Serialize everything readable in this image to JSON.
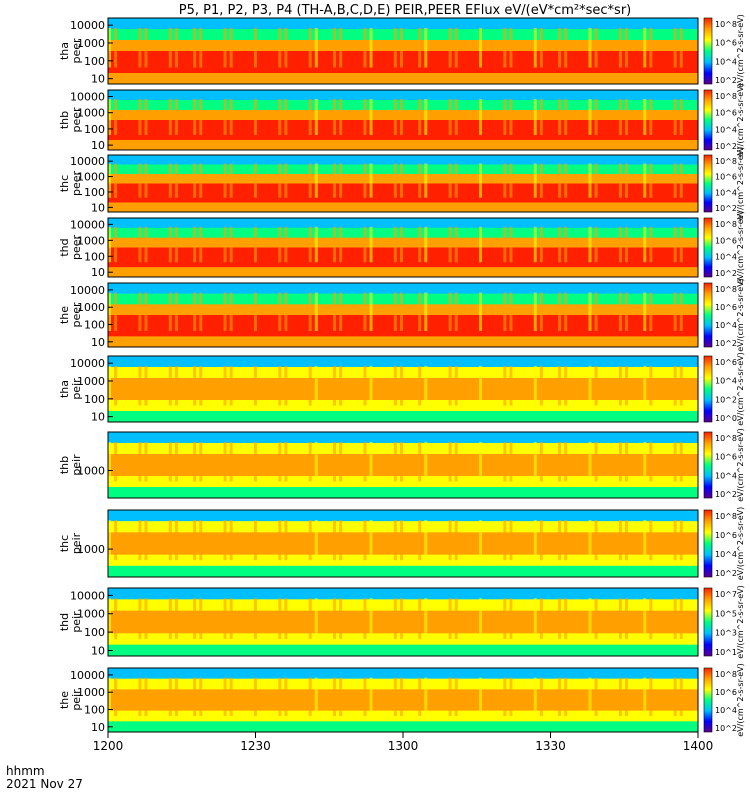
{
  "chart_data": {
    "type": "heatmap",
    "title": "P5, P1, P2, P3, P4 (TH-A,B,C,D,E) PEIR,PEER EFlux eV/(eV*cm²*sec*sr)",
    "time_axis": {
      "label_line1": "hhmm",
      "label_line2": "2021 Nov 27",
      "ticks": [
        "1200",
        "1230",
        "1300",
        "1330",
        "1400"
      ]
    },
    "panels": [
      {
        "name": "tha peer",
        "ylabel_top": "tha",
        "ylabel_bottom": "peer",
        "yticks": [
          "10000",
          "1000",
          "100",
          "10"
        ],
        "log_yrange": [
          0.7,
          4.4
        ],
        "cbar_ticks": [
          "10^8",
          "10^6",
          "10^4",
          "10^2"
        ],
        "cbar_label": "eV/(cm^2-s-sr-eV)"
      },
      {
        "name": "thb peer",
        "ylabel_top": "thb",
        "ylabel_bottom": "peer",
        "yticks": [
          "10000",
          "1000",
          "100",
          "10"
        ],
        "log_yrange": [
          0.7,
          4.4
        ],
        "cbar_ticks": [
          "10^8",
          "10^6",
          "10^4",
          "10^2"
        ],
        "cbar_label": "eV/(cm^2-s-sr-eV)"
      },
      {
        "name": "thc peer",
        "ylabel_top": "thc",
        "ylabel_bottom": "peer",
        "yticks": [
          "10000",
          "1000",
          "100",
          "10"
        ],
        "log_yrange": [
          0.7,
          4.4
        ],
        "cbar_ticks": [
          "10^8",
          "10^6",
          "10^4",
          "10^2"
        ],
        "cbar_label": "eV/(cm^2-s-sr-eV)"
      },
      {
        "name": "thd peer",
        "ylabel_top": "thd",
        "ylabel_bottom": "peer",
        "yticks": [
          "10000",
          "1000",
          "100",
          "10"
        ],
        "log_yrange": [
          0.7,
          4.4
        ],
        "cbar_ticks": [
          "10^8",
          "10^6",
          "10^4",
          "10^2"
        ],
        "cbar_label": "eV/(cm^2-s-sr-eV)"
      },
      {
        "name": "the peer",
        "ylabel_top": "the",
        "ylabel_bottom": "peer",
        "yticks": [
          "10000",
          "1000",
          "100",
          "10"
        ],
        "log_yrange": [
          0.7,
          4.4
        ],
        "cbar_ticks": [
          "10^8",
          "10^6",
          "10^4",
          "10^2"
        ],
        "cbar_label": "eV/(cm^2-s-sr-eV)"
      },
      {
        "name": "tha peir",
        "ylabel_top": "tha",
        "ylabel_bottom": "peir",
        "yticks": [
          "10000",
          "1000",
          "100",
          "10"
        ],
        "log_yrange": [
          0.7,
          4.4
        ],
        "cbar_ticks": [
          "10^6",
          "10^4",
          "10^2",
          "10^0"
        ],
        "cbar_label": "eV/(cm^2-s-sr-eV)"
      },
      {
        "name": "thb peir",
        "ylabel_top": "thb",
        "ylabel_bottom": "peir",
        "yticks": [
          "1000"
        ],
        "log_yrange": [
          2.0,
          4.4
        ],
        "cbar_ticks": [
          "10^8",
          "10^6",
          "10^4",
          "10^2"
        ],
        "cbar_label": "eV/(cm^2-s-sr-eV)"
      },
      {
        "name": "thc peir",
        "ylabel_top": "thc",
        "ylabel_bottom": "peir",
        "yticks": [
          "1000"
        ],
        "log_yrange": [
          2.0,
          4.4
        ],
        "cbar_ticks": [
          "10^8",
          "10^6",
          "10^4",
          "10^2"
        ],
        "cbar_label": "eV/(cm^2-s-sr-eV)"
      },
      {
        "name": "thd peir",
        "ylabel_top": "thd",
        "ylabel_bottom": "peir",
        "yticks": [
          "10000",
          "1000",
          "100",
          "10"
        ],
        "log_yrange": [
          0.7,
          4.4
        ],
        "cbar_ticks": [
          "10^7",
          "10^5",
          "10^3",
          "10^1"
        ],
        "cbar_label": "eV/(cm^2-s-sr-eV)"
      },
      {
        "name": "the peir",
        "ylabel_top": "the",
        "ylabel_bottom": "peir",
        "yticks": [
          "10000",
          "1000",
          "100",
          "10"
        ],
        "log_yrange": [
          0.7,
          4.4
        ],
        "cbar_ticks": [
          "10^8",
          "10^6",
          "10^4",
          "10^2"
        ],
        "cbar_label": "eV/(cm^2-s-sr-eV)"
      }
    ],
    "colorbar_colors": [
      "#5a0090",
      "#0000ff",
      "#00bfff",
      "#00ff80",
      "#ffff00",
      "#ffa000",
      "#ff2000"
    ],
    "grid": false
  }
}
